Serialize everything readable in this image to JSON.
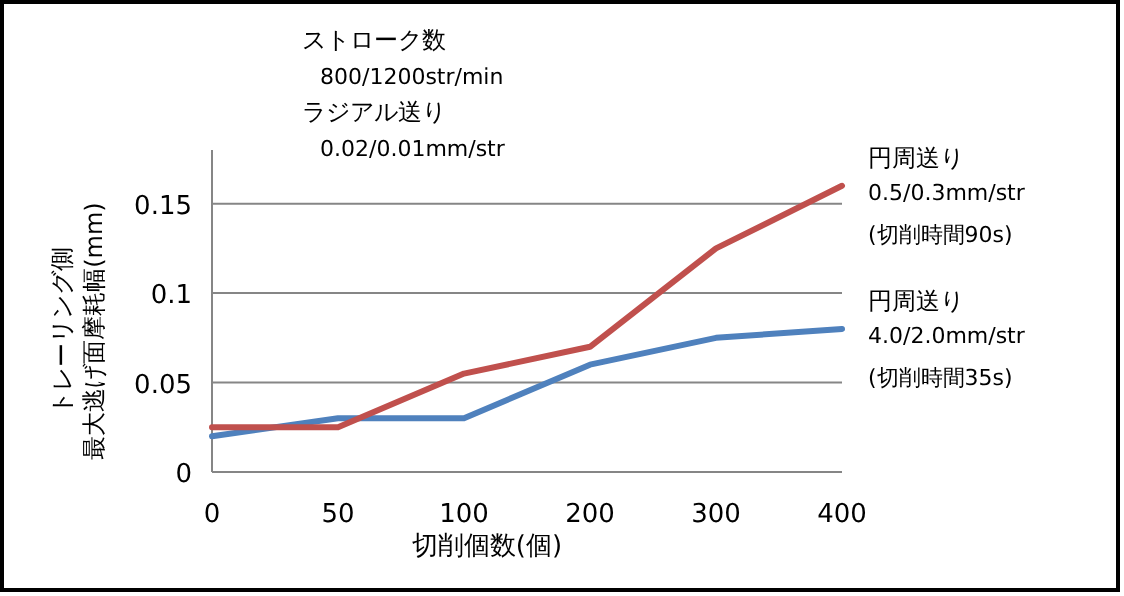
{
  "chart_data": {
    "type": "line",
    "xlabel": "切削個数(個)",
    "ylabel": "トレーリング側最大逃げ面摩耗幅(mm)",
    "categories": [
      "0",
      "50",
      "100",
      "200",
      "300",
      "400"
    ],
    "series": [
      {
        "name": "円周送り\n4.0/2.0mm/str\n(切削時間35s)",
        "color": "#4f81bd",
        "values": [
          0.02,
          0.03,
          0.03,
          0.06,
          0.075,
          0.08
        ]
      },
      {
        "name": "円周送り\n0.5/0.3mm/str\n(切削時間90s)",
        "color": "#c0504d",
        "values": [
          0.025,
          0.025,
          0.055,
          0.07,
          0.125,
          0.16
        ]
      }
    ],
    "annotations": [
      "ストローク数",
      "800/1200str/min",
      "ラジアル送り",
      "0.02/0.01mm/str"
    ],
    "ylim": [
      0,
      0.18
    ],
    "yticks": [
      0,
      0.05,
      {
        "value": 0.1,
        "label": "0.1"
      },
      0.15
    ],
    "grid": "y",
    "marker": "none",
    "line_style": "solid"
  }
}
